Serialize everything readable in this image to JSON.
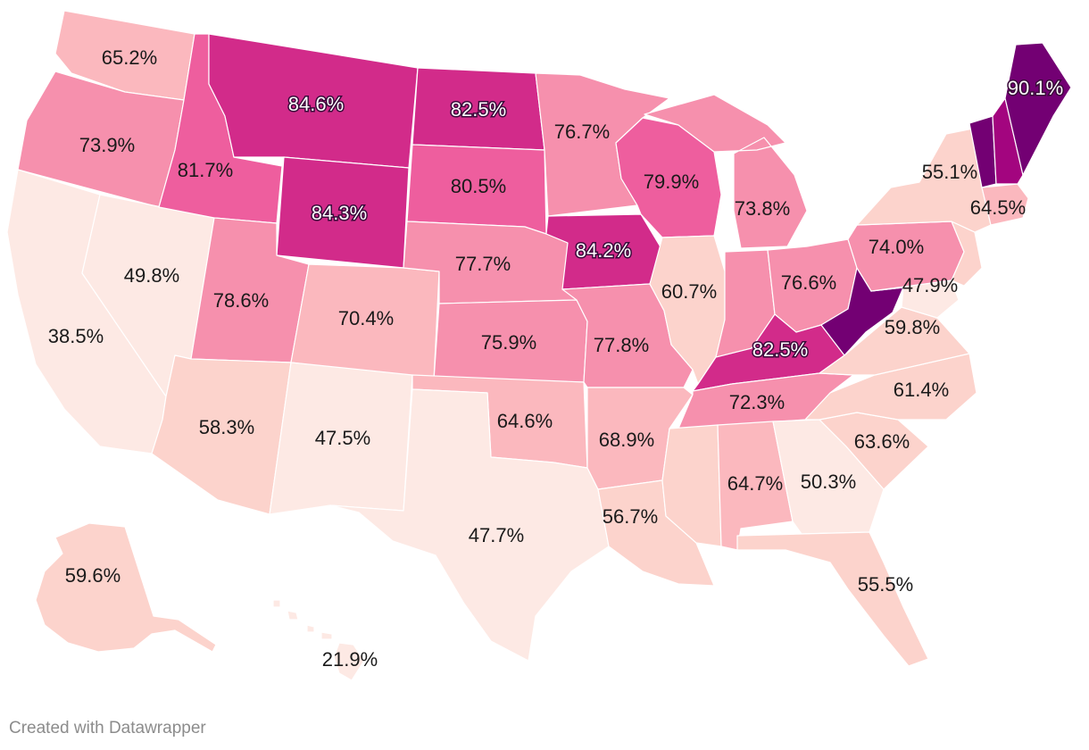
{
  "credit": "Created with Datawrapper",
  "colors": {
    "scale": [
      "#fde9e4",
      "#fcd3cc",
      "#fbb8be",
      "#f690ad",
      "#ee5e9e",
      "#d22b8a",
      "#a3057f",
      "#730073"
    ],
    "border": "#ffffff",
    "label_dark": "#1a1a1a",
    "label_light": "#ffffff"
  },
  "states": [
    {
      "code": "WA",
      "value": "65.2%"
    },
    {
      "code": "OR",
      "value": "73.9%"
    },
    {
      "code": "CA",
      "value": "38.5%"
    },
    {
      "code": "NV",
      "value": "49.8%"
    },
    {
      "code": "ID",
      "value": "81.7%"
    },
    {
      "code": "MT",
      "value": "84.6%"
    },
    {
      "code": "WY",
      "value": "84.3%"
    },
    {
      "code": "UT",
      "value": "78.6%"
    },
    {
      "code": "AZ",
      "value": "58.3%"
    },
    {
      "code": "CO",
      "value": "70.4%"
    },
    {
      "code": "NM",
      "value": "47.5%"
    },
    {
      "code": "ND",
      "value": "82.5%"
    },
    {
      "code": "SD",
      "value": "80.5%"
    },
    {
      "code": "NE",
      "value": "77.7%"
    },
    {
      "code": "KS",
      "value": "75.9%"
    },
    {
      "code": "OK",
      "value": "64.6%"
    },
    {
      "code": "TX",
      "value": "47.7%"
    },
    {
      "code": "MN",
      "value": "76.7%"
    },
    {
      "code": "IA",
      "value": "84.2%"
    },
    {
      "code": "MO",
      "value": "77.8%"
    },
    {
      "code": "AR",
      "value": "68.9%"
    },
    {
      "code": "LA",
      "value": "56.7%"
    },
    {
      "code": "WI",
      "value": "79.9%"
    },
    {
      "code": "IL",
      "value": "60.7%"
    },
    {
      "code": "MI",
      "value": "73.8%"
    },
    {
      "code": "IN",
      "value": ""
    },
    {
      "code": "OH",
      "value": "76.6%"
    },
    {
      "code": "KY",
      "value": "82.5%"
    },
    {
      "code": "TN",
      "value": "72.3%"
    },
    {
      "code": "MS",
      "value": ""
    },
    {
      "code": "AL",
      "value": "64.7%"
    },
    {
      "code": "GA",
      "value": "50.3%"
    },
    {
      "code": "FL",
      "value": "55.5%"
    },
    {
      "code": "SC",
      "value": "63.6%"
    },
    {
      "code": "NC",
      "value": "61.4%"
    },
    {
      "code": "VA",
      "value": "59.8%"
    },
    {
      "code": "WV",
      "value": ""
    },
    {
      "code": "MD",
      "value": "47.9%"
    },
    {
      "code": "PA",
      "value": "74.0%"
    },
    {
      "code": "NY",
      "value": "55.1%"
    },
    {
      "code": "NJ",
      "value": ""
    },
    {
      "code": "MA",
      "value": "64.5%"
    },
    {
      "code": "VT",
      "value": ""
    },
    {
      "code": "NH",
      "value": ""
    },
    {
      "code": "ME",
      "value": "90.1%"
    },
    {
      "code": "AK",
      "value": "59.6%"
    },
    {
      "code": "HI",
      "value": "21.9%"
    }
  ]
}
